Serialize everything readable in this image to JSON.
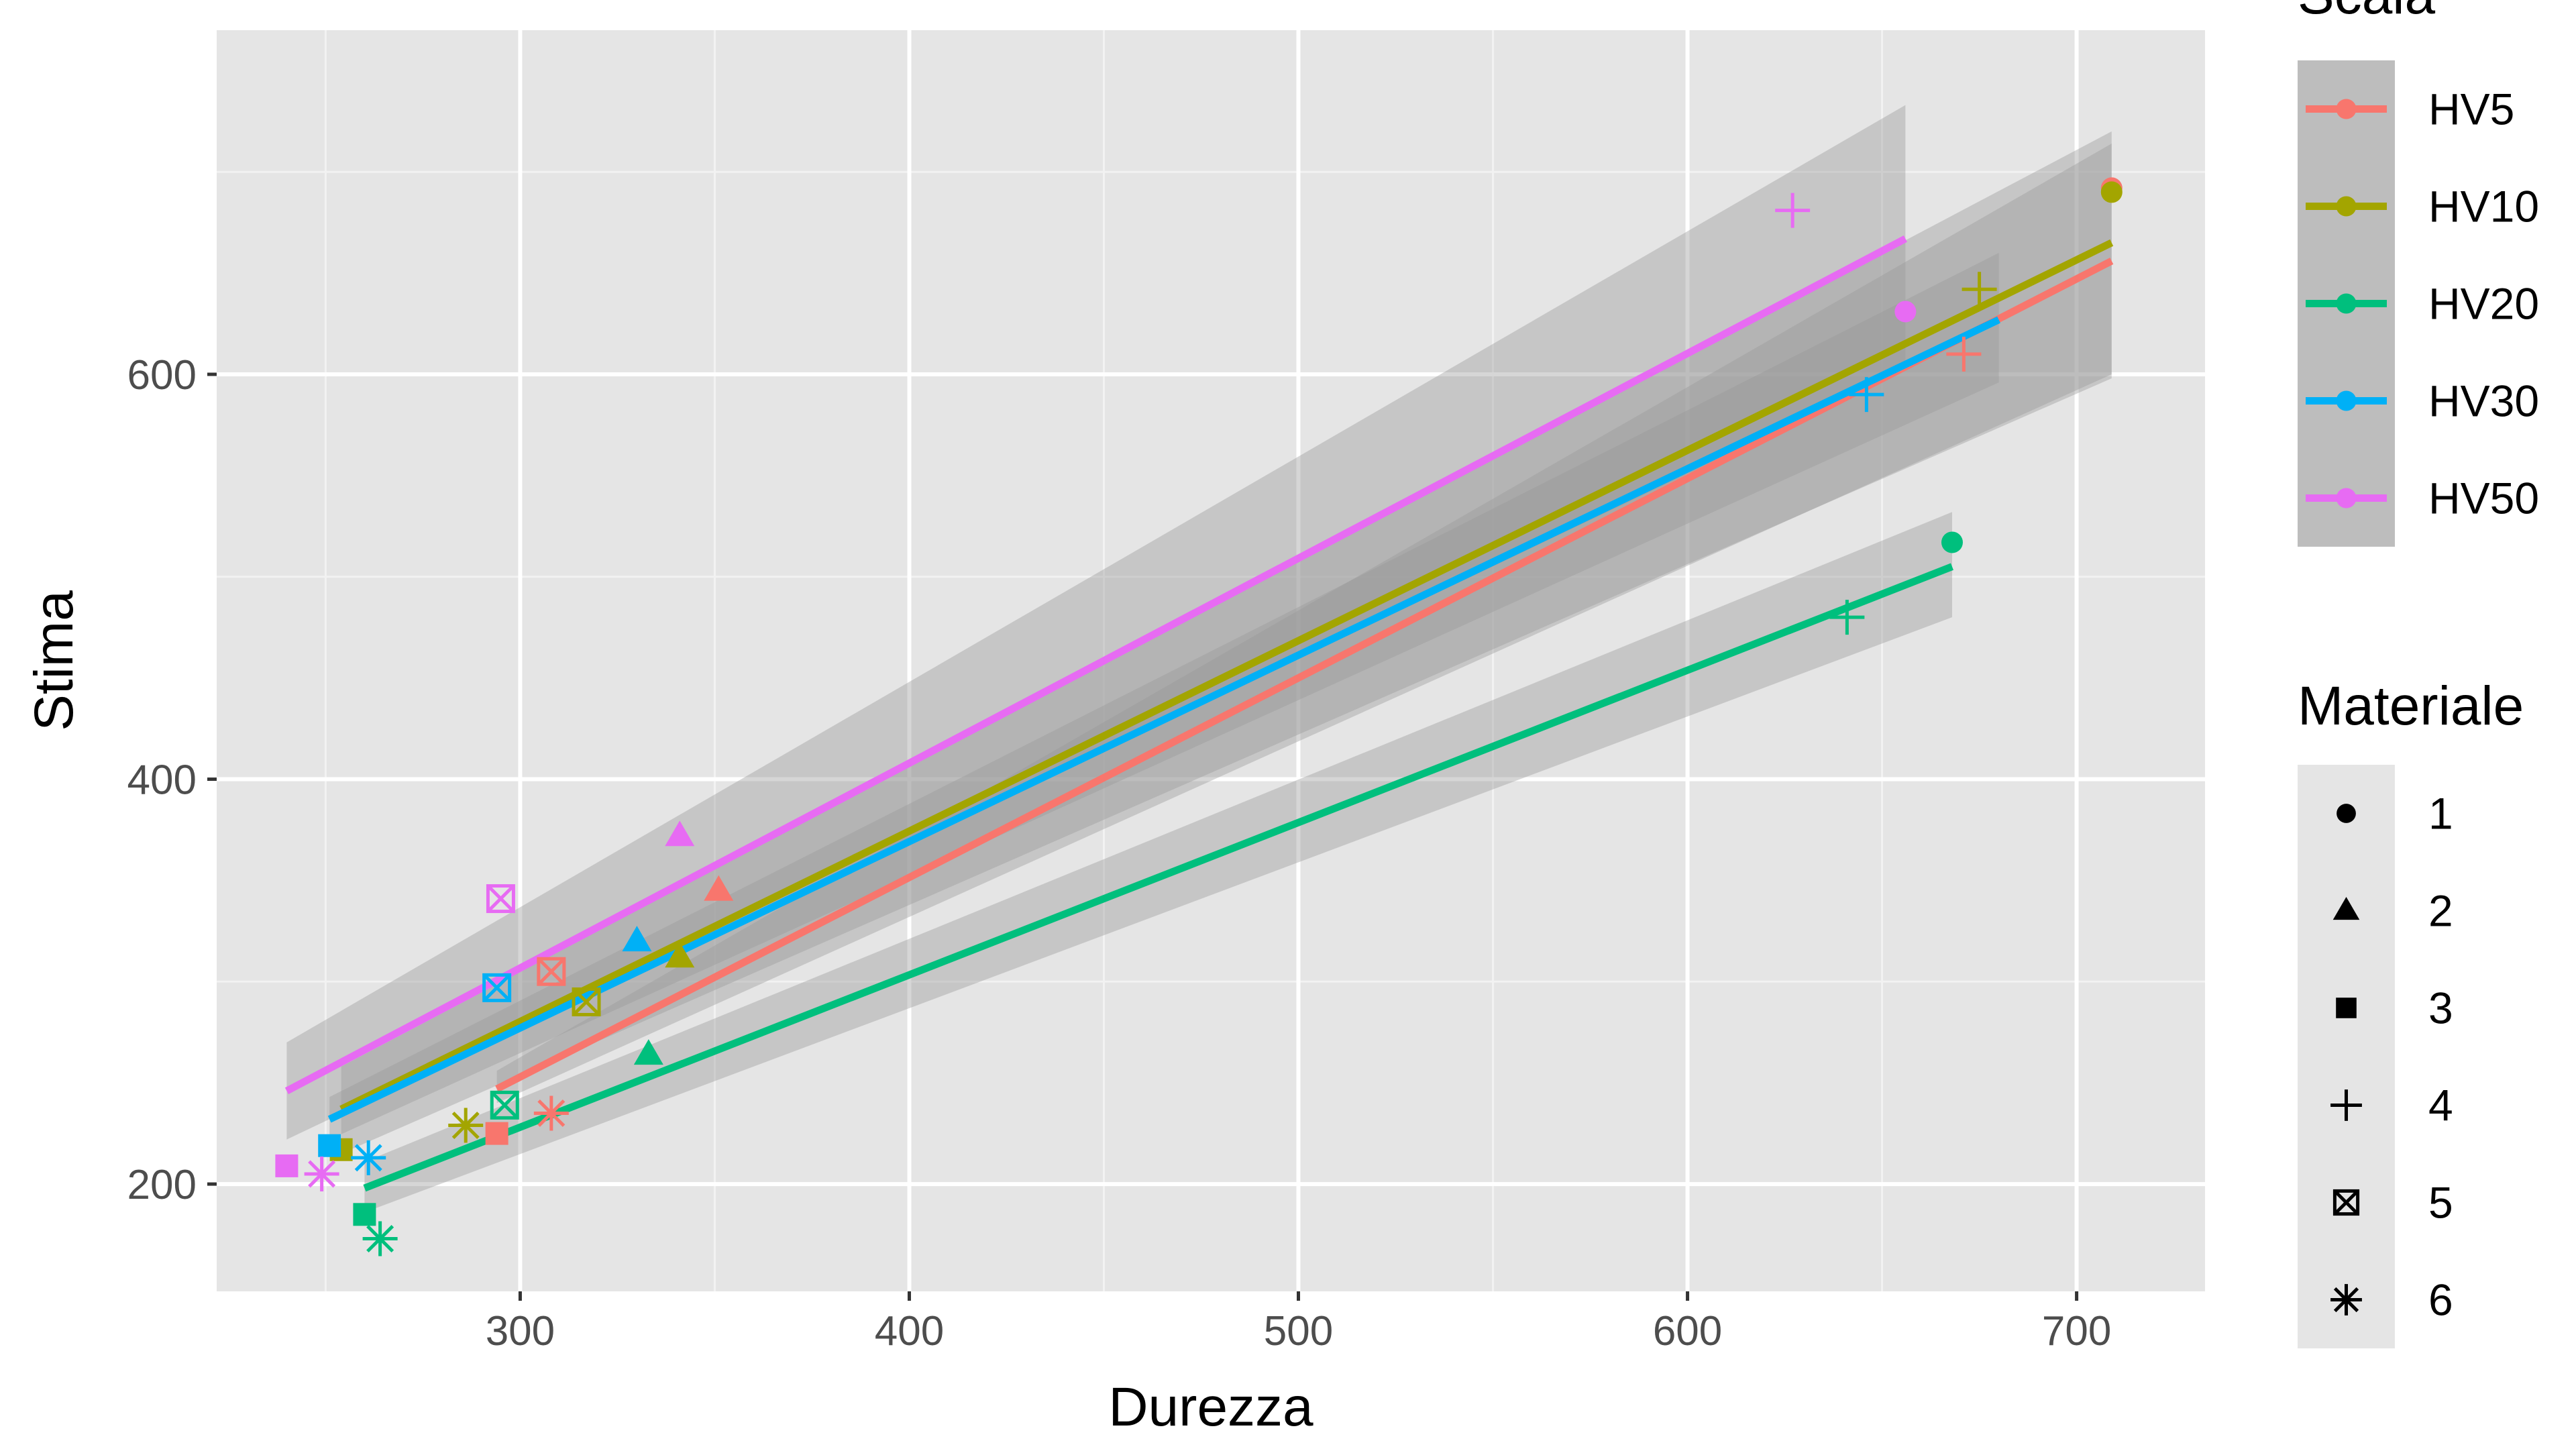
{
  "chart_data": {
    "type": "scatter",
    "xlabel": "Durezza",
    "ylabel": "Stima",
    "xlim": [
      222,
      733
    ],
    "ylim": [
      147,
      770
    ],
    "x_ticks": [
      300,
      400,
      500,
      600,
      700
    ],
    "y_ticks": [
      200,
      400,
      600
    ],
    "grid": true,
    "legend_position": "right",
    "color_legend": {
      "title": "Scala",
      "entries": [
        {
          "label": "HV5",
          "color": "#F8766D"
        },
        {
          "label": "HV10",
          "color": "#A3A500"
        },
        {
          "label": "HV20",
          "color": "#00BF7D"
        },
        {
          "label": "HV30",
          "color": "#00B0F6"
        },
        {
          "label": "HV50",
          "color": "#E76BF3"
        }
      ]
    },
    "shape_legend": {
      "title": "Materiale",
      "entries": [
        {
          "label": "1",
          "shape": "circle"
        },
        {
          "label": "2",
          "shape": "triangle"
        },
        {
          "label": "3",
          "shape": "square"
        },
        {
          "label": "4",
          "shape": "plus"
        },
        {
          "label": "5",
          "shape": "square-cross"
        },
        {
          "label": "6",
          "shape": "asterisk"
        }
      ]
    },
    "series": [
      {
        "name": "HV5",
        "color": "#F8766D",
        "points": [
          {
            "x": 709,
            "y": 692,
            "materiale": "1"
          },
          {
            "x": 351,
            "y": 345,
            "materiale": "2"
          },
          {
            "x": 294,
            "y": 225,
            "materiale": "3"
          },
          {
            "x": 671,
            "y": 610,
            "materiale": "4"
          },
          {
            "x": 308,
            "y": 305,
            "materiale": "5"
          },
          {
            "x": 308,
            "y": 235,
            "materiale": "6"
          }
        ],
        "fit": {
          "x": [
            294,
            709
          ],
          "y": [
            247,
            656
          ],
          "band": [
            [
              294,
              240,
              256
            ],
            [
              709,
              600,
              714
            ]
          ]
        }
      },
      {
        "name": "HV10",
        "color": "#A3A500",
        "points": [
          {
            "x": 709,
            "y": 690,
            "materiale": "1"
          },
          {
            "x": 341,
            "y": 312,
            "materiale": "2"
          },
          {
            "x": 254,
            "y": 217,
            "materiale": "3"
          },
          {
            "x": 675,
            "y": 642,
            "materiale": "4"
          },
          {
            "x": 317,
            "y": 290,
            "materiale": "5"
          },
          {
            "x": 286,
            "y": 229,
            "materiale": "6"
          }
        ],
        "fit": {
          "x": [
            254,
            709
          ],
          "y": [
            237,
            665
          ],
          "band": [
            [
              254,
              215,
              258
            ],
            [
              709,
              598,
              720
            ]
          ]
        }
      },
      {
        "name": "HV20",
        "color": "#00BF7D",
        "points": [
          {
            "x": 668,
            "y": 517,
            "materiale": "1"
          },
          {
            "x": 333,
            "y": 264,
            "materiale": "2"
          },
          {
            "x": 260,
            "y": 185,
            "materiale": "3"
          },
          {
            "x": 641,
            "y": 480,
            "materiale": "4"
          },
          {
            "x": 296,
            "y": 239,
            "materiale": "5"
          },
          {
            "x": 264,
            "y": 173,
            "materiale": "6"
          }
        ],
        "fit": {
          "x": [
            260,
            668
          ],
          "y": [
            198,
            505
          ],
          "band": [
            [
              260,
              186,
              211
            ],
            [
              668,
              480,
              532
            ]
          ]
        }
      },
      {
        "name": "HV30",
        "color": "#00B0F6",
        "points": [
          {
            "x": 330,
            "y": 320,
            "materiale": "2"
          },
          {
            "x": 251,
            "y": 219,
            "materiale": "3"
          },
          {
            "x": 646,
            "y": 590,
            "materiale": "4"
          },
          {
            "x": 294,
            "y": 297,
            "materiale": "5"
          },
          {
            "x": 261,
            "y": 213,
            "materiale": "6"
          }
        ],
        "fit": {
          "x": [
            251,
            680
          ],
          "y": [
            232,
            627
          ],
          "band": [
            [
              251,
              222,
              243
            ],
            [
              680,
              596,
              660
            ]
          ]
        }
      },
      {
        "name": "HV50",
        "color": "#E76BF3",
        "points": [
          {
            "x": 656,
            "y": 631,
            "materiale": "1"
          },
          {
            "x": 341,
            "y": 372,
            "materiale": "2"
          },
          {
            "x": 240,
            "y": 209,
            "materiale": "3"
          },
          {
            "x": 627,
            "y": 681,
            "materiale": "4"
          },
          {
            "x": 295,
            "y": 341,
            "materiale": "5"
          },
          {
            "x": 249,
            "y": 205,
            "materiale": "6"
          }
        ],
        "fit": {
          "x": [
            240,
            656
          ],
          "y": [
            246,
            667
          ],
          "band": [
            [
              240,
              222,
              270
            ],
            [
              656,
              602,
              733
            ]
          ]
        }
      }
    ]
  }
}
